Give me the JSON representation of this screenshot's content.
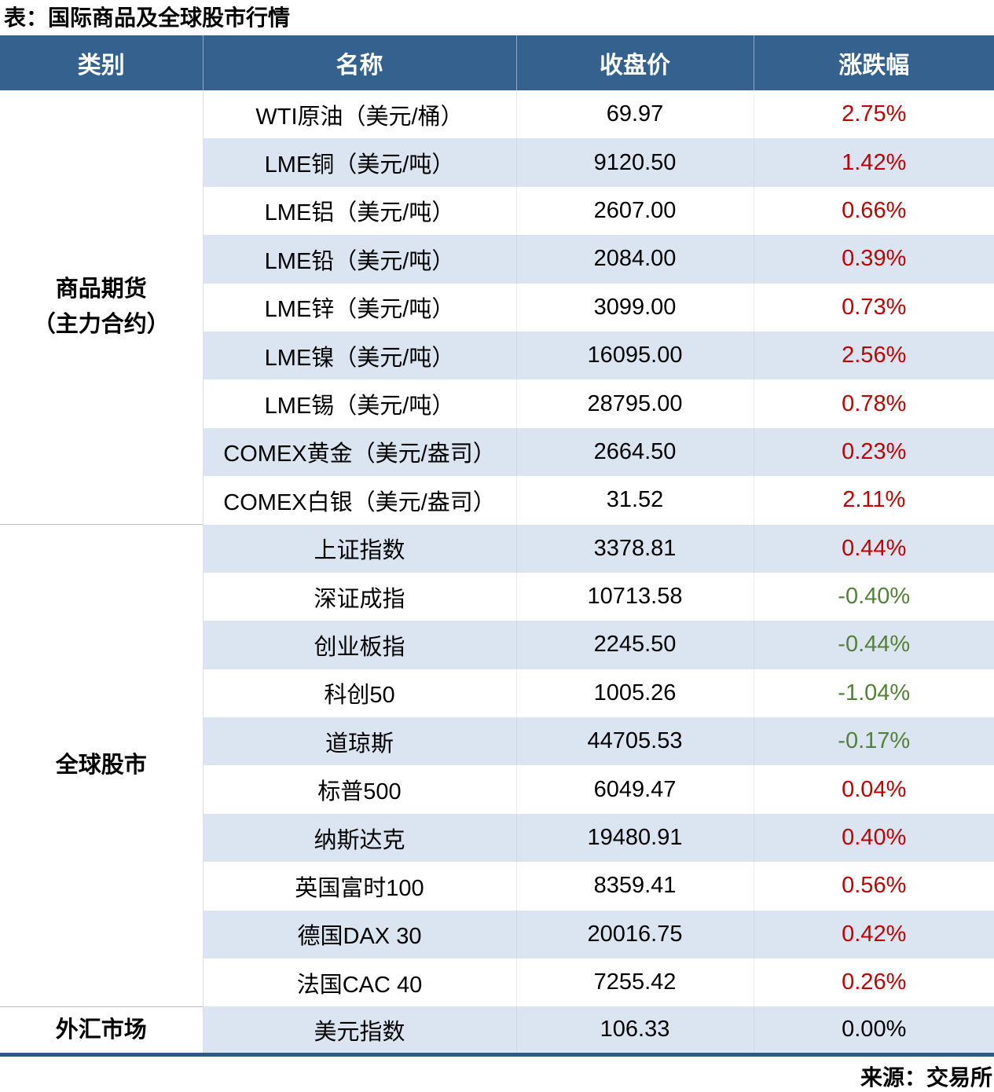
{
  "title": "表：国际商品及全球股市行情",
  "source": "来源：交易所",
  "colors": {
    "header_bg": "#35618F",
    "header_text": "#FFFFFF",
    "row_alt_bg": "#DBE5F1",
    "up": "#C00000",
    "down": "#538135",
    "flat": "#000000",
    "bottom_border": "#2E5984"
  },
  "table": {
    "headers": [
      "类别",
      "名称",
      "收盘价",
      "涨跌幅"
    ],
    "sections": [
      {
        "category": [
          "商品期货",
          "（主力合约）"
        ],
        "rows": [
          {
            "name": "WTI原油（美元/桶）",
            "close": "69.97",
            "change": "2.75%",
            "dir": "up"
          },
          {
            "name": "LME铜（美元/吨）",
            "close": "9120.50",
            "change": "1.42%",
            "dir": "up"
          },
          {
            "name": "LME铝（美元/吨）",
            "close": "2607.00",
            "change": "0.66%",
            "dir": "up"
          },
          {
            "name": "LME铅（美元/吨）",
            "close": "2084.00",
            "change": "0.39%",
            "dir": "up"
          },
          {
            "name": "LME锌（美元/吨）",
            "close": "3099.00",
            "change": "0.73%",
            "dir": "up"
          },
          {
            "name": "LME镍（美元/吨）",
            "close": "16095.00",
            "change": "2.56%",
            "dir": "up"
          },
          {
            "name": "LME锡（美元/吨）",
            "close": "28795.00",
            "change": "0.78%",
            "dir": "up"
          },
          {
            "name": "COMEX黄金（美元/盎司）",
            "close": "2664.50",
            "change": "0.23%",
            "dir": "up"
          },
          {
            "name": "COMEX白银（美元/盎司）",
            "close": "31.52",
            "change": "2.11%",
            "dir": "up"
          }
        ]
      },
      {
        "category": [
          "全球股市"
        ],
        "rows": [
          {
            "name": "上证指数",
            "close": "3378.81",
            "change": "0.44%",
            "dir": "up"
          },
          {
            "name": "深证成指",
            "close": "10713.58",
            "change": "-0.40%",
            "dir": "down"
          },
          {
            "name": "创业板指",
            "close": "2245.50",
            "change": "-0.44%",
            "dir": "down"
          },
          {
            "name": "科创50",
            "close": "1005.26",
            "change": "-1.04%",
            "dir": "down"
          },
          {
            "name": "道琼斯",
            "close": "44705.53",
            "change": "-0.17%",
            "dir": "down"
          },
          {
            "name": "标普500",
            "close": "6049.47",
            "change": "0.04%",
            "dir": "up"
          },
          {
            "name": "纳斯达克",
            "close": "19480.91",
            "change": "0.40%",
            "dir": "up"
          },
          {
            "name": "英国富时100",
            "close": "8359.41",
            "change": "0.56%",
            "dir": "up"
          },
          {
            "name": "德国DAX 30",
            "close": "20016.75",
            "change": "0.42%",
            "dir": "up"
          },
          {
            "name": "法国CAC 40",
            "close": "7255.42",
            "change": "0.26%",
            "dir": "up"
          }
        ]
      },
      {
        "category": [
          "外汇市场"
        ],
        "rows": [
          {
            "name": "美元指数",
            "close": "106.33",
            "change": "0.00%",
            "dir": "flat"
          }
        ]
      }
    ]
  }
}
